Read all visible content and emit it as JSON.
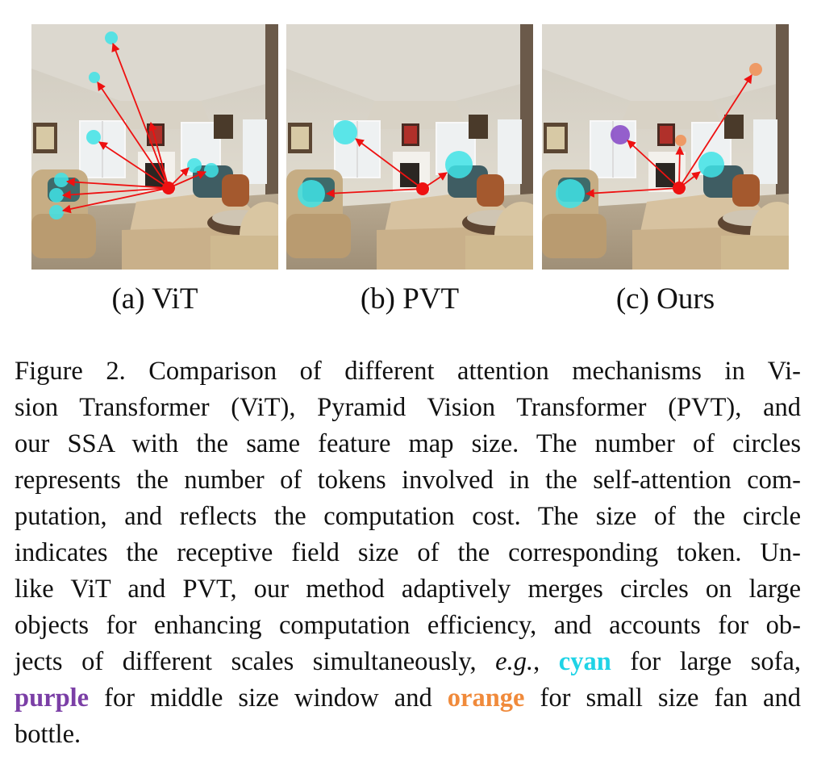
{
  "figure": {
    "panels": [
      {
        "id": "a",
        "label": "(a) ViT"
      },
      {
        "id": "b",
        "label": "(b) PVT"
      },
      {
        "id": "c",
        "label": "(c) Ours"
      }
    ],
    "colors": {
      "attention_cyan": "#3fe3e6",
      "attention_purple": "#8a4fc8",
      "attention_orange": "#f0945a",
      "query_red": "#ee1111"
    },
    "caption": {
      "l1": "Figure 2.  Comparison of different attention mechanisms in Vi-",
      "l2": "sion Transformer (ViT), Pyramid Vision Transformer (PVT), and",
      "l3": "our SSA with the same feature map size.  The number of circles",
      "l4": "represents the number of tokens involved in the self-attention com-",
      "l5": "putation, and reflects the computation cost. The size of the circle",
      "l6": "indicates the receptive field size of the corresponding token.  Un-",
      "l7": "like ViT and PVT, our method adaptively merges circles on large",
      "l8": "objects for enhancing computation efficiency, and accounts for ob-",
      "l9a": "jects of different scales simultaneously, ",
      "l9_eg": "e.g.",
      "l9b": ", ",
      "l9_cyan": "cyan",
      "l9c": " for large sofa,",
      "l10_purple": "purple",
      "l10a": " for middle size window and ",
      "l10_orange": "orange",
      "l10b": " for small size fan and",
      "l11": "bottle."
    }
  }
}
